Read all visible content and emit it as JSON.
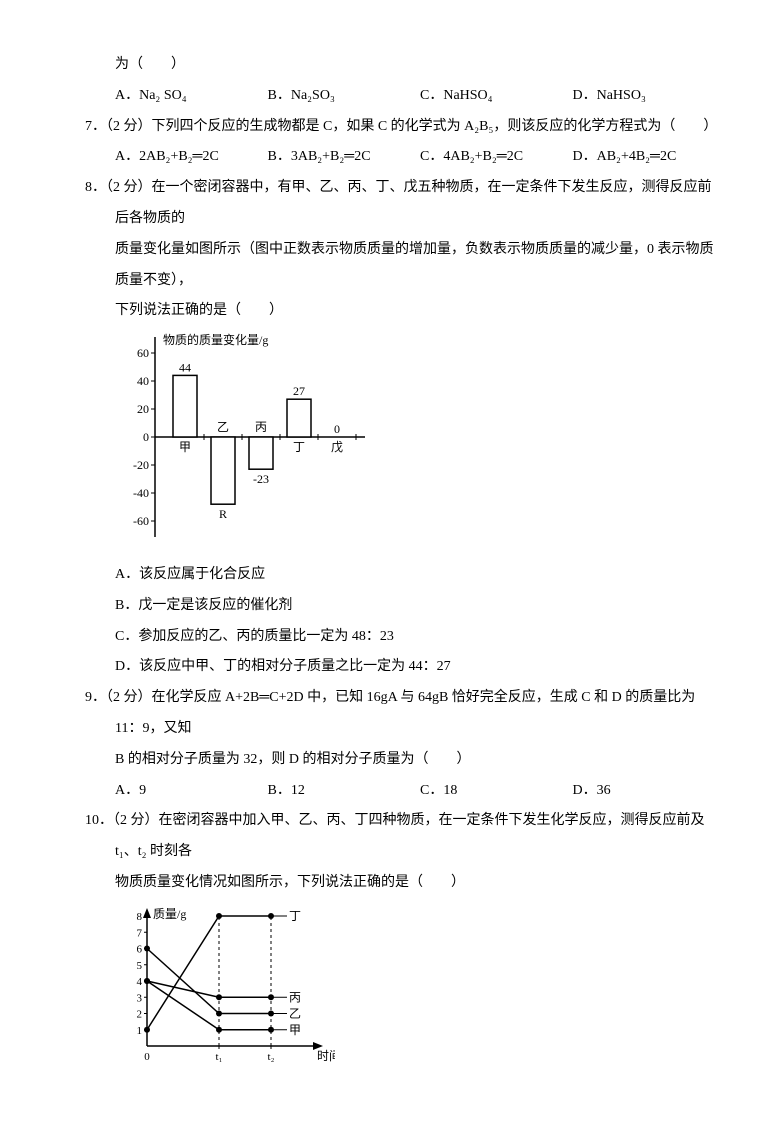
{
  "q6": {
    "tail": "为（　　）",
    "A": "A．Na₂ SO₄",
    "B": "B．Na₂SO₃",
    "C": "C．NaHSO₄",
    "D": "D．NaHSO₃"
  },
  "q7": {
    "stem": "7．（2 分）下列四个反应的生成物都是 C，如果 C 的化学式为 A₂B₅，则该反应的化学方程式为（　　）",
    "A": "A．2AB₂+B₂═2C",
    "B": "B．3AB₂+B₂═2C",
    "C": "C．4AB₂+B₂═2C",
    "D": "D．AB₂+4B₂═2C"
  },
  "q8": {
    "stem1": "8．（2 分）在一个密闭容器中，有甲、乙、丙、丁、戊五种物质，在一定条件下发生反应，测得反应前后各物质的",
    "stem2": "质量变化量如图所示（图中正数表示物质质量的增加量，负数表示物质质量的减少量，0 表示物质质量不变），",
    "stem3": "下列说法正确的是（　　）",
    "chart": {
      "ylabel": "物质的质量变化量/g",
      "yticks": [
        60,
        40,
        20,
        0,
        -20,
        -40,
        -60
      ],
      "bars": [
        {
          "label": "甲",
          "value": 44,
          "text": "44"
        },
        {
          "label": "乙",
          "value": -48,
          "text": "R"
        },
        {
          "label": "丙",
          "value": -23,
          "text": "-23"
        },
        {
          "label": "丁",
          "value": 27,
          "text": "27"
        },
        {
          "label": "戊",
          "value": 0,
          "text": "0"
        }
      ],
      "bar_fill": "#ffffff",
      "bar_stroke": "#000000",
      "axis_color": "#000000",
      "font_size": 12
    },
    "A": "A．该反应属于化合反应",
    "B": "B．戊一定是该反应的催化剂",
    "C": "C．参加反应的乙、丙的质量比一定为 48：23",
    "D": "D．该反应中甲、丁的相对分子质量之比一定为 44：27"
  },
  "q9": {
    "stem1": "9．（2 分）在化学反应 A+2B═C+2D 中，已知 16gA 与 64gB 恰好完全反应，生成 C 和 D 的质量比为 11：9，又知",
    "stem2": "B 的相对分子质量为 32，则 D 的相对分子质量为（　　）",
    "A": "A．9",
    "B": "B．12",
    "C": "C．18",
    "D": "D．36"
  },
  "q10": {
    "stem1": "10．（2 分）在密闭容器中加入甲、乙、丙、丁四种物质，在一定条件下发生化学反应，测得反应前及 t₁、t₂ 时刻各",
    "stem2": "物质质量变化情况如图所示，下列说法正确的是（　　）",
    "chart": {
      "ylabel": "质量/g",
      "xlabel": "时间/s",
      "yticks": [
        1,
        2,
        3,
        4,
        5,
        6,
        7,
        8
      ],
      "xticks": [
        "0",
        "t₁",
        "t₂"
      ],
      "series": [
        {
          "name": "丁",
          "points": [
            [
              0,
              1
            ],
            [
              1,
              8
            ],
            [
              2,
              8
            ]
          ]
        },
        {
          "name": "丙",
          "points": [
            [
              0,
              4
            ],
            [
              1,
              3
            ],
            [
              2,
              3
            ]
          ]
        },
        {
          "name": "乙",
          "points": [
            [
              0,
              6
            ],
            [
              1,
              2
            ],
            [
              2,
              2
            ]
          ]
        },
        {
          "name": "甲",
          "points": [
            [
              0,
              4
            ],
            [
              1,
              1
            ],
            [
              2,
              1
            ]
          ]
        }
      ],
      "marker": "circle",
      "marker_fill": "#000000",
      "line_color": "#000000",
      "axis_color": "#000000",
      "background": "#ffffff",
      "font_size": 12
    }
  }
}
